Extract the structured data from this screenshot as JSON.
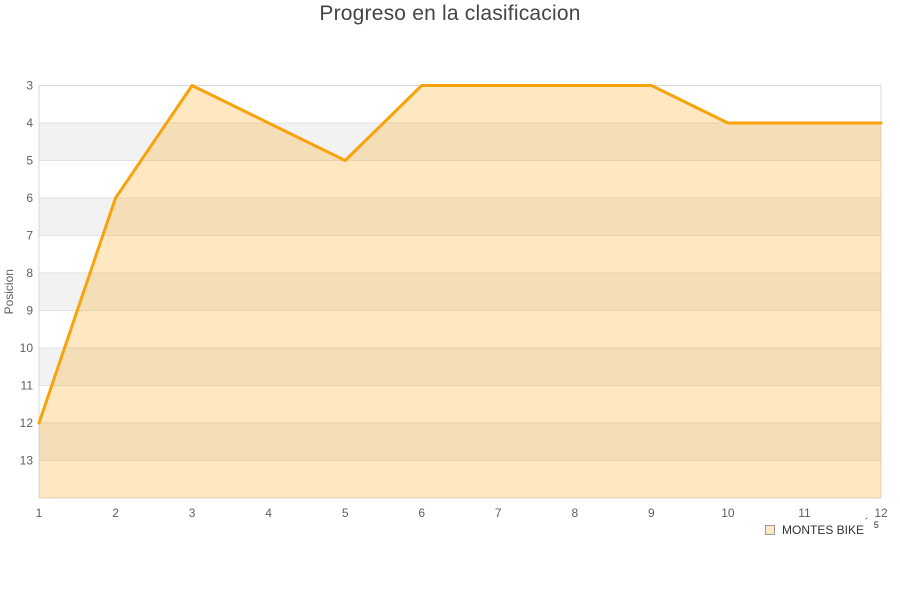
{
  "title": "Progreso en la clasificacion",
  "legend": {
    "label": "MONTES BIKE",
    "accent": "´",
    "superscript": "5",
    "marker_color": "#FAE7C6",
    "marker_border": "#9A9A9A"
  },
  "chart_data": {
    "type": "area",
    "title": "Progreso en la clasificacion",
    "xlabel": "",
    "ylabel": "Posicion",
    "x": [
      1,
      2,
      3,
      4,
      5,
      6,
      7,
      8,
      9,
      10,
      11,
      12
    ],
    "x_ticks": [
      1,
      2,
      3,
      4,
      5,
      6,
      7,
      8,
      9,
      10,
      11,
      12
    ],
    "y_ticks": [
      3,
      4,
      5,
      6,
      7,
      8,
      9,
      10,
      11,
      12,
      13
    ],
    "ylim_top": 3,
    "ylim_bottom": 14,
    "y_inverted": true,
    "grid": "horizontal-only",
    "legend_position": "bottom-right",
    "series": [
      {
        "name": "MONTES BIKE",
        "values": [
          12,
          6,
          3,
          4,
          5,
          3,
          3,
          3,
          3,
          4,
          4,
          4
        ]
      }
    ],
    "gray_bands": [
      [
        4,
        5
      ],
      [
        6,
        7
      ],
      [
        8,
        9
      ],
      [
        10,
        11
      ],
      [
        12,
        13
      ]
    ],
    "colors": {
      "line": "#F8A30D",
      "fill": "rgba(248,163,13,0.25)",
      "band": "#F2F2F2",
      "grid": "#E2E2E2",
      "border": "#D8D8D8",
      "tick_text": "#606060",
      "title_text": "#454545"
    }
  }
}
